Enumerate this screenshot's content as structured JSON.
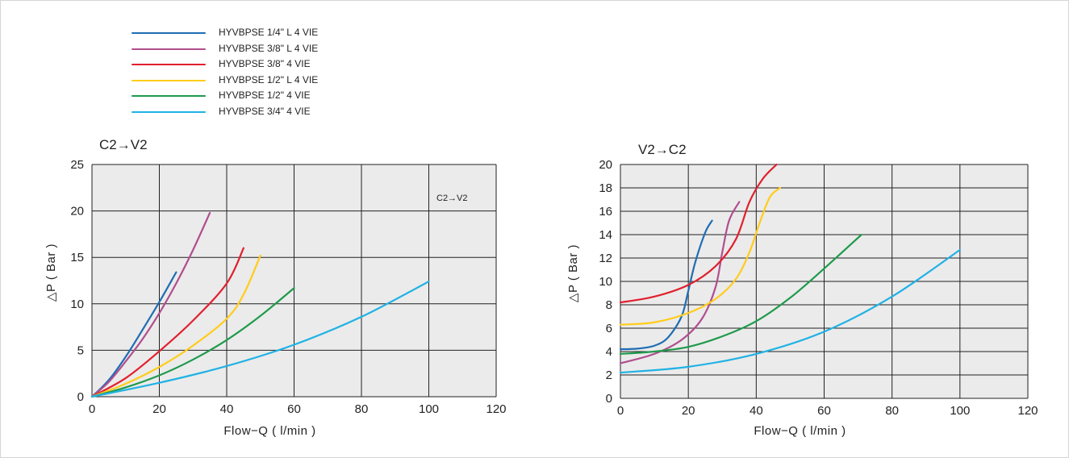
{
  "legend": [
    {
      "name": "HYVBPSE 1/4\" L 4 VIE",
      "color": "#1f6db3"
    },
    {
      "name": "HYVBPSE 3/8\" L 4 VIE",
      "color": "#b04e8e"
    },
    {
      "name": "HYVBPSE 3/8\" 4 VIE",
      "color": "#e0202e"
    },
    {
      "name": "HYVBPSE 1/2\" L 4 VIE",
      "color": "#ffcc1a"
    },
    {
      "name": "HYVBPSE 1/2\" 4 VIE",
      "color": "#1f9a4c"
    },
    {
      "name": "HYVBPSE 3/4\" 4 VIE",
      "color": "#20b2e4"
    }
  ],
  "chart_data": [
    {
      "type": "line",
      "title": "C2→V2",
      "annotation": "C2→V2",
      "xlabel": "Flow−Q ( l/min )",
      "ylabel": "△P ( Bar )",
      "xlim": [
        0,
        120
      ],
      "ylim": [
        0,
        25
      ],
      "xticks": [
        "0",
        "20",
        "40",
        "60",
        "80",
        "100",
        "120"
      ],
      "yticks": [
        "0",
        "5",
        "10",
        "15",
        "20",
        "25"
      ],
      "grid": true,
      "series": [
        {
          "name": "HYVBPSE 1/4\" L 4 VIE",
          "color": "#1f6db3",
          "x": [
            0,
            5,
            10,
            15,
            20,
            25
          ],
          "y": [
            0,
            1.8,
            4.3,
            7.2,
            10.2,
            13.4
          ]
        },
        {
          "name": "HYVBPSE 3/8\" L 4 VIE",
          "color": "#b04e8e",
          "x": [
            0,
            5,
            10,
            15,
            20,
            25,
            30,
            35
          ],
          "y": [
            0,
            1.6,
            3.8,
            6.2,
            9.0,
            12.2,
            15.8,
            19.8
          ]
        },
        {
          "name": "HYVBPSE 3/8\" 4 VIE",
          "color": "#e0202e",
          "x": [
            0,
            10,
            20,
            30,
            40,
            45
          ],
          "y": [
            0,
            2.0,
            4.9,
            8.2,
            12.2,
            16.0
          ]
        },
        {
          "name": "HYVBPSE 1/2\" L 4 VIE",
          "color": "#ffcc1a",
          "x": [
            0,
            10,
            20,
            30,
            40,
            45,
            50
          ],
          "y": [
            0,
            1.4,
            3.2,
            5.5,
            8.4,
            11.0,
            15.2
          ]
        },
        {
          "name": "HYVBPSE 1/2\" 4 VIE",
          "color": "#1f9a4c",
          "x": [
            0,
            10,
            20,
            30,
            40,
            50,
            60
          ],
          "y": [
            0,
            1.0,
            2.3,
            4.0,
            6.1,
            8.7,
            11.7
          ]
        },
        {
          "name": "HYVBPSE 3/4\" 4 VIE",
          "color": "#20b2e4",
          "x": [
            0,
            20,
            40,
            60,
            80,
            100
          ],
          "y": [
            0,
            1.5,
            3.3,
            5.6,
            8.6,
            12.4
          ]
        }
      ]
    },
    {
      "type": "line",
      "title": "V2→C2",
      "xlabel": "Flow−Q ( l/min )",
      "ylabel": "△P ( Bar )",
      "xlim": [
        0,
        120
      ],
      "ylim": [
        0,
        20
      ],
      "xticks": [
        "0",
        "20",
        "40",
        "60",
        "80",
        "100",
        "120"
      ],
      "yticks": [
        "0",
        "2",
        "4",
        "6",
        "8",
        "10",
        "12",
        "14",
        "16",
        "18",
        "20"
      ],
      "grid": true,
      "series": [
        {
          "name": "HYVBPSE 1/4\" L 4 VIE",
          "color": "#1f6db3",
          "x": [
            0,
            5,
            10,
            14,
            18,
            20,
            22,
            25,
            27
          ],
          "y": [
            4.2,
            4.25,
            4.5,
            5.2,
            7.0,
            9.2,
            11.6,
            14.2,
            15.2
          ]
        },
        {
          "name": "HYVBPSE 3/8\" L 4 VIE",
          "color": "#b04e8e",
          "x": [
            0,
            10,
            18,
            24,
            28,
            30,
            32,
            35
          ],
          "y": [
            3.0,
            3.8,
            5.0,
            6.8,
            9.5,
            12.5,
            15.2,
            16.8
          ]
        },
        {
          "name": "HYVBPSE 3/8\" 4 VIE",
          "color": "#e0202e",
          "x": [
            0,
            10,
            20,
            28,
            34,
            38,
            42,
            46
          ],
          "y": [
            8.2,
            8.7,
            9.7,
            11.3,
            13.6,
            16.8,
            18.8,
            20.0
          ]
        },
        {
          "name": "HYVBPSE 1/2\" L 4 VIE",
          "color": "#ffcc1a",
          "x": [
            0,
            10,
            20,
            28,
            34,
            38,
            41,
            44,
            47
          ],
          "y": [
            6.3,
            6.5,
            7.3,
            8.5,
            10.2,
            12.5,
            15.0,
            17.2,
            18.0
          ]
        },
        {
          "name": "HYVBPSE 1/2\" 4 VIE",
          "color": "#1f9a4c",
          "x": [
            0,
            10,
            20,
            30,
            40,
            50,
            60,
            71
          ],
          "y": [
            3.8,
            4.0,
            4.4,
            5.3,
            6.6,
            8.6,
            11.1,
            14.0
          ]
        },
        {
          "name": "HYVBPSE 3/4\" 4 VIE",
          "color": "#20b2e4",
          "x": [
            0,
            20,
            40,
            60,
            80,
            100
          ],
          "y": [
            2.2,
            2.7,
            3.8,
            5.7,
            8.7,
            12.7
          ]
        }
      ]
    }
  ]
}
